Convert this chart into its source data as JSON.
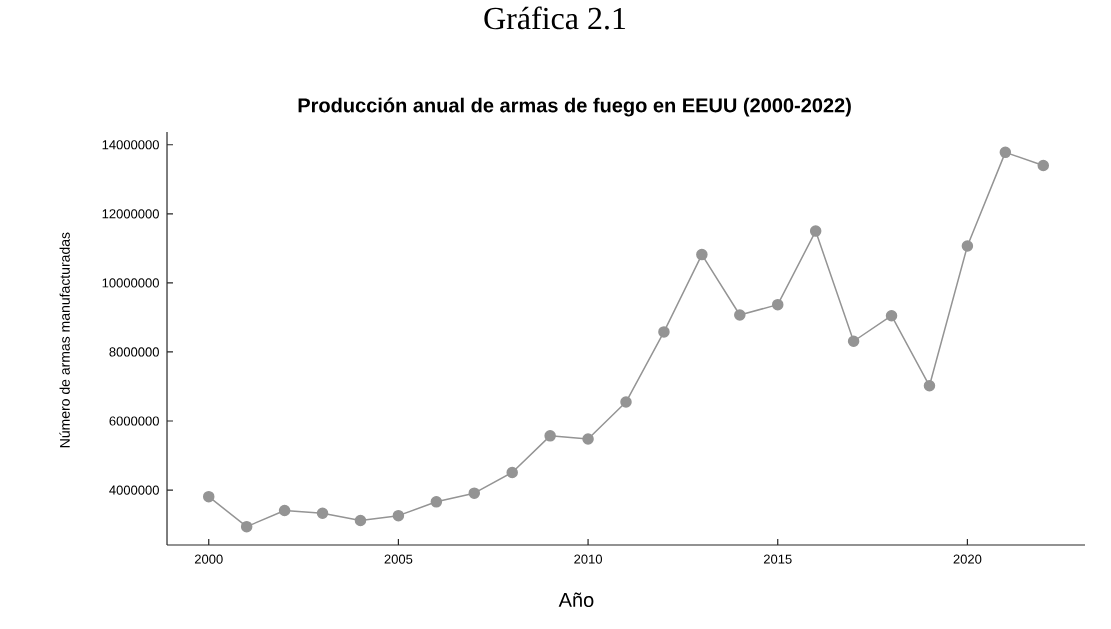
{
  "chart_data": {
    "type": "line",
    "title": "Producción anual de armas de fuego en EEUU (2000-2022)",
    "xlabel": "Año",
    "ylabel": "Número de armas manufacturadas",
    "annotations": [
      "Gráfica 2.1"
    ],
    "x": [
      2000,
      2001,
      2002,
      2003,
      2004,
      2005,
      2006,
      2007,
      2008,
      2009,
      2010,
      2011,
      2012,
      2013,
      2014,
      2015,
      2016,
      2017,
      2018,
      2019,
      2020,
      2021,
      2022
    ],
    "series": [
      {
        "color": "#949494",
        "values": [
          3810000,
          2940000,
          3410000,
          3330000,
          3120000,
          3260000,
          3660000,
          3910000,
          4510000,
          5570000,
          5480000,
          6550000,
          8580000,
          10820000,
          9070000,
          9370000,
          11500000,
          8310000,
          9050000,
          7020000,
          11070000,
          13780000,
          13400000
        ]
      }
    ],
    "xlim": [
      1998.9,
      2023.1
    ],
    "ylim": [
      2410000,
      14370000
    ],
    "xticks": [
      2000,
      2005,
      2010,
      2015,
      2020
    ],
    "yticks": [
      4000000,
      6000000,
      8000000,
      10000000,
      12000000,
      14000000
    ],
    "marker": "circle",
    "line_style": "solid",
    "grid": false
  }
}
